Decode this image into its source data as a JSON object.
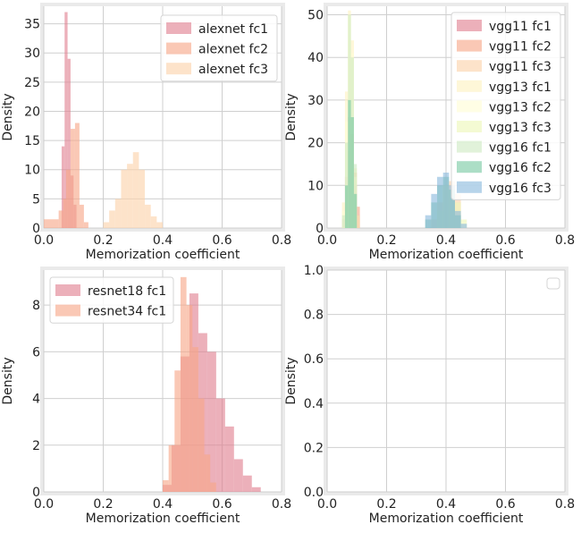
{
  "chart_data": [
    {
      "type": "histogram",
      "xlabel": "Memorization coefficient",
      "ylabel": "Density",
      "xlim": [
        0,
        0.8
      ],
      "ylim": [
        0,
        38
      ],
      "xticks": [
        "0.0",
        "0.2",
        "0.4",
        "0.6",
        "0.8"
      ],
      "yticks": [
        "0",
        "5",
        "10",
        "15",
        "20",
        "25",
        "30",
        "35"
      ],
      "grid": true,
      "legend_position": "top-right",
      "series": [
        {
          "name": "alexnet fc1",
          "color": "#e07f8f",
          "bins": [
            [
              0.06,
              0.07,
              14
            ],
            [
              0.07,
              0.08,
              37
            ],
            [
              0.08,
              0.09,
              29
            ],
            [
              0.09,
              0.1,
              9
            ],
            [
              0.1,
              0.11,
              4
            ]
          ]
        },
        {
          "name": "alexnet fc2",
          "color": "#f7a787",
          "bins": [
            [
              0.0,
              0.05,
              1.5
            ],
            [
              0.05,
              0.065,
              3
            ],
            [
              0.065,
              0.075,
              5
            ],
            [
              0.075,
              0.09,
              10
            ],
            [
              0.09,
              0.105,
              17
            ],
            [
              0.105,
              0.12,
              18
            ],
            [
              0.12,
              0.135,
              4
            ],
            [
              0.135,
              0.15,
              1
            ]
          ]
        },
        {
          "name": "alexnet fc3",
          "color": "#fbd2a9",
          "bins": [
            [
              0.2,
              0.22,
              1
            ],
            [
              0.22,
              0.24,
              3
            ],
            [
              0.24,
              0.26,
              5
            ],
            [
              0.26,
              0.28,
              10
            ],
            [
              0.28,
              0.3,
              11
            ],
            [
              0.3,
              0.32,
              13
            ],
            [
              0.32,
              0.34,
              10
            ],
            [
              0.34,
              0.36,
              4
            ],
            [
              0.36,
              0.38,
              2
            ],
            [
              0.38,
              0.4,
              1
            ]
          ]
        }
      ]
    },
    {
      "type": "histogram",
      "xlabel": "Memorization coefficient",
      "ylabel": "Density",
      "xlim": [
        0,
        0.8
      ],
      "ylim": [
        0,
        52
      ],
      "xticks": [
        "0.0",
        "0.2",
        "0.4",
        "0.6",
        "0.8"
      ],
      "yticks": [
        "0",
        "10",
        "20",
        "30",
        "40",
        "50"
      ],
      "grid": true,
      "legend_position": "top-right",
      "series": [
        {
          "name": "vgg11 fc1",
          "color": "#e07f8f",
          "bins": [
            [
              0.05,
              0.06,
              2
            ],
            [
              0.06,
              0.07,
              12
            ],
            [
              0.07,
              0.08,
              26
            ],
            [
              0.08,
              0.09,
              22
            ],
            [
              0.09,
              0.1,
              10
            ],
            [
              0.1,
              0.11,
              3
            ]
          ]
        },
        {
          "name": "vgg11 fc2",
          "color": "#f7a787",
          "bins": [
            [
              0.06,
              0.07,
              5
            ],
            [
              0.07,
              0.08,
              18
            ],
            [
              0.08,
              0.09,
              22
            ],
            [
              0.09,
              0.1,
              13
            ],
            [
              0.1,
              0.11,
              5
            ]
          ]
        },
        {
          "name": "vgg11 fc3",
          "color": "#fbd2a9",
          "bins": [
            [
              0.35,
              0.37,
              2
            ],
            [
              0.37,
              0.39,
              6
            ],
            [
              0.39,
              0.41,
              10
            ],
            [
              0.41,
              0.43,
              11
            ],
            [
              0.43,
              0.45,
              8
            ]
          ]
        },
        {
          "name": "vgg13 fc1",
          "color": "#fdf2c0",
          "bins": [
            [
              0.05,
              0.06,
              6
            ],
            [
              0.06,
              0.07,
              32
            ],
            [
              0.07,
              0.08,
              51
            ],
            [
              0.08,
              0.09,
              44
            ],
            [
              0.09,
              0.1,
              14
            ],
            [
              0.1,
              0.11,
              3
            ]
          ]
        },
        {
          "name": "vgg13 fc2",
          "color": "#fffdd5",
          "bins": [
            [
              0.05,
              0.06,
              4
            ],
            [
              0.06,
              0.07,
              25
            ],
            [
              0.07,
              0.08,
              50
            ],
            [
              0.08,
              0.09,
              41
            ],
            [
              0.09,
              0.1,
              12
            ]
          ]
        },
        {
          "name": "vgg13 fc3",
          "color": "#eef7b8",
          "bins": [
            [
              0.37,
              0.39,
              4
            ],
            [
              0.39,
              0.41,
              10
            ],
            [
              0.41,
              0.43,
              9
            ],
            [
              0.43,
              0.45,
              6
            ],
            [
              0.45,
              0.47,
              2
            ]
          ]
        },
        {
          "name": "vgg16 fc1",
          "color": "#cfeac3",
          "bins": [
            [
              0.05,
              0.06,
              3
            ],
            [
              0.06,
              0.07,
              20
            ],
            [
              0.07,
              0.08,
              50
            ],
            [
              0.08,
              0.09,
              40
            ],
            [
              0.09,
              0.1,
              15
            ]
          ]
        },
        {
          "name": "vgg16 fc2",
          "color": "#79c9a3",
          "bins": [
            [
              0.06,
              0.07,
              10
            ],
            [
              0.07,
              0.08,
              30
            ],
            [
              0.08,
              0.09,
              26
            ],
            [
              0.09,
              0.1,
              8
            ],
            [
              0.33,
              0.35,
              2
            ],
            [
              0.35,
              0.37,
              6
            ],
            [
              0.37,
              0.39,
              10
            ],
            [
              0.39,
              0.41,
              12
            ],
            [
              0.41,
              0.43,
              9
            ],
            [
              0.43,
              0.45,
              3
            ]
          ]
        },
        {
          "name": "vgg16 fc3",
          "color": "#8bb9dd",
          "bins": [
            [
              0.33,
              0.35,
              3
            ],
            [
              0.35,
              0.37,
              8
            ],
            [
              0.37,
              0.39,
              12
            ],
            [
              0.39,
              0.41,
              13
            ],
            [
              0.41,
              0.43,
              10
            ],
            [
              0.43,
              0.45,
              4
            ],
            [
              0.45,
              0.47,
              1
            ]
          ]
        }
      ]
    },
    {
      "type": "histogram",
      "xlabel": "Memorization coefficient",
      "ylabel": "Density",
      "xlim": [
        0,
        0.8
      ],
      "ylim": [
        0,
        9.5
      ],
      "xticks": [
        "0.0",
        "0.2",
        "0.4",
        "0.6",
        "0.8"
      ],
      "yticks": [
        "0",
        "2",
        "4",
        "6",
        "8"
      ],
      "grid": true,
      "legend_position": "top-left",
      "series": [
        {
          "name": "resnet18 fc1",
          "color": "#e07f8f",
          "bins": [
            [
              0.4,
              0.43,
              0.3
            ],
            [
              0.43,
              0.46,
              2
            ],
            [
              0.46,
              0.49,
              5.8
            ],
            [
              0.49,
              0.52,
              8.5
            ],
            [
              0.52,
              0.55,
              6.8
            ],
            [
              0.55,
              0.58,
              6
            ],
            [
              0.58,
              0.61,
              4
            ],
            [
              0.61,
              0.64,
              2.8
            ],
            [
              0.64,
              0.67,
              1.4
            ],
            [
              0.67,
              0.7,
              0.7
            ],
            [
              0.7,
              0.73,
              0.2
            ]
          ]
        },
        {
          "name": "resnet34 fc1",
          "color": "#f7a787",
          "bins": [
            [
              0.4,
              0.42,
              0.5
            ],
            [
              0.42,
              0.44,
              2
            ],
            [
              0.44,
              0.46,
              5.2
            ],
            [
              0.46,
              0.48,
              9.2
            ],
            [
              0.48,
              0.5,
              8
            ],
            [
              0.5,
              0.52,
              6.2
            ],
            [
              0.52,
              0.54,
              4
            ],
            [
              0.54,
              0.56,
              1.6
            ],
            [
              0.56,
              0.58,
              0.4
            ]
          ]
        }
      ]
    },
    {
      "type": "histogram",
      "xlabel": "Memorization coefficient",
      "ylabel": "Density",
      "xlim": [
        0,
        0.8
      ],
      "ylim": [
        0,
        1.0
      ],
      "xticks": [
        "0.0",
        "0.2",
        "0.4",
        "0.6",
        "0.8"
      ],
      "yticks": [
        "0.0",
        "0.2",
        "0.4",
        "0.6",
        "0.8",
        "1.0"
      ],
      "grid": true,
      "legend_position": "top-right",
      "series": []
    }
  ]
}
